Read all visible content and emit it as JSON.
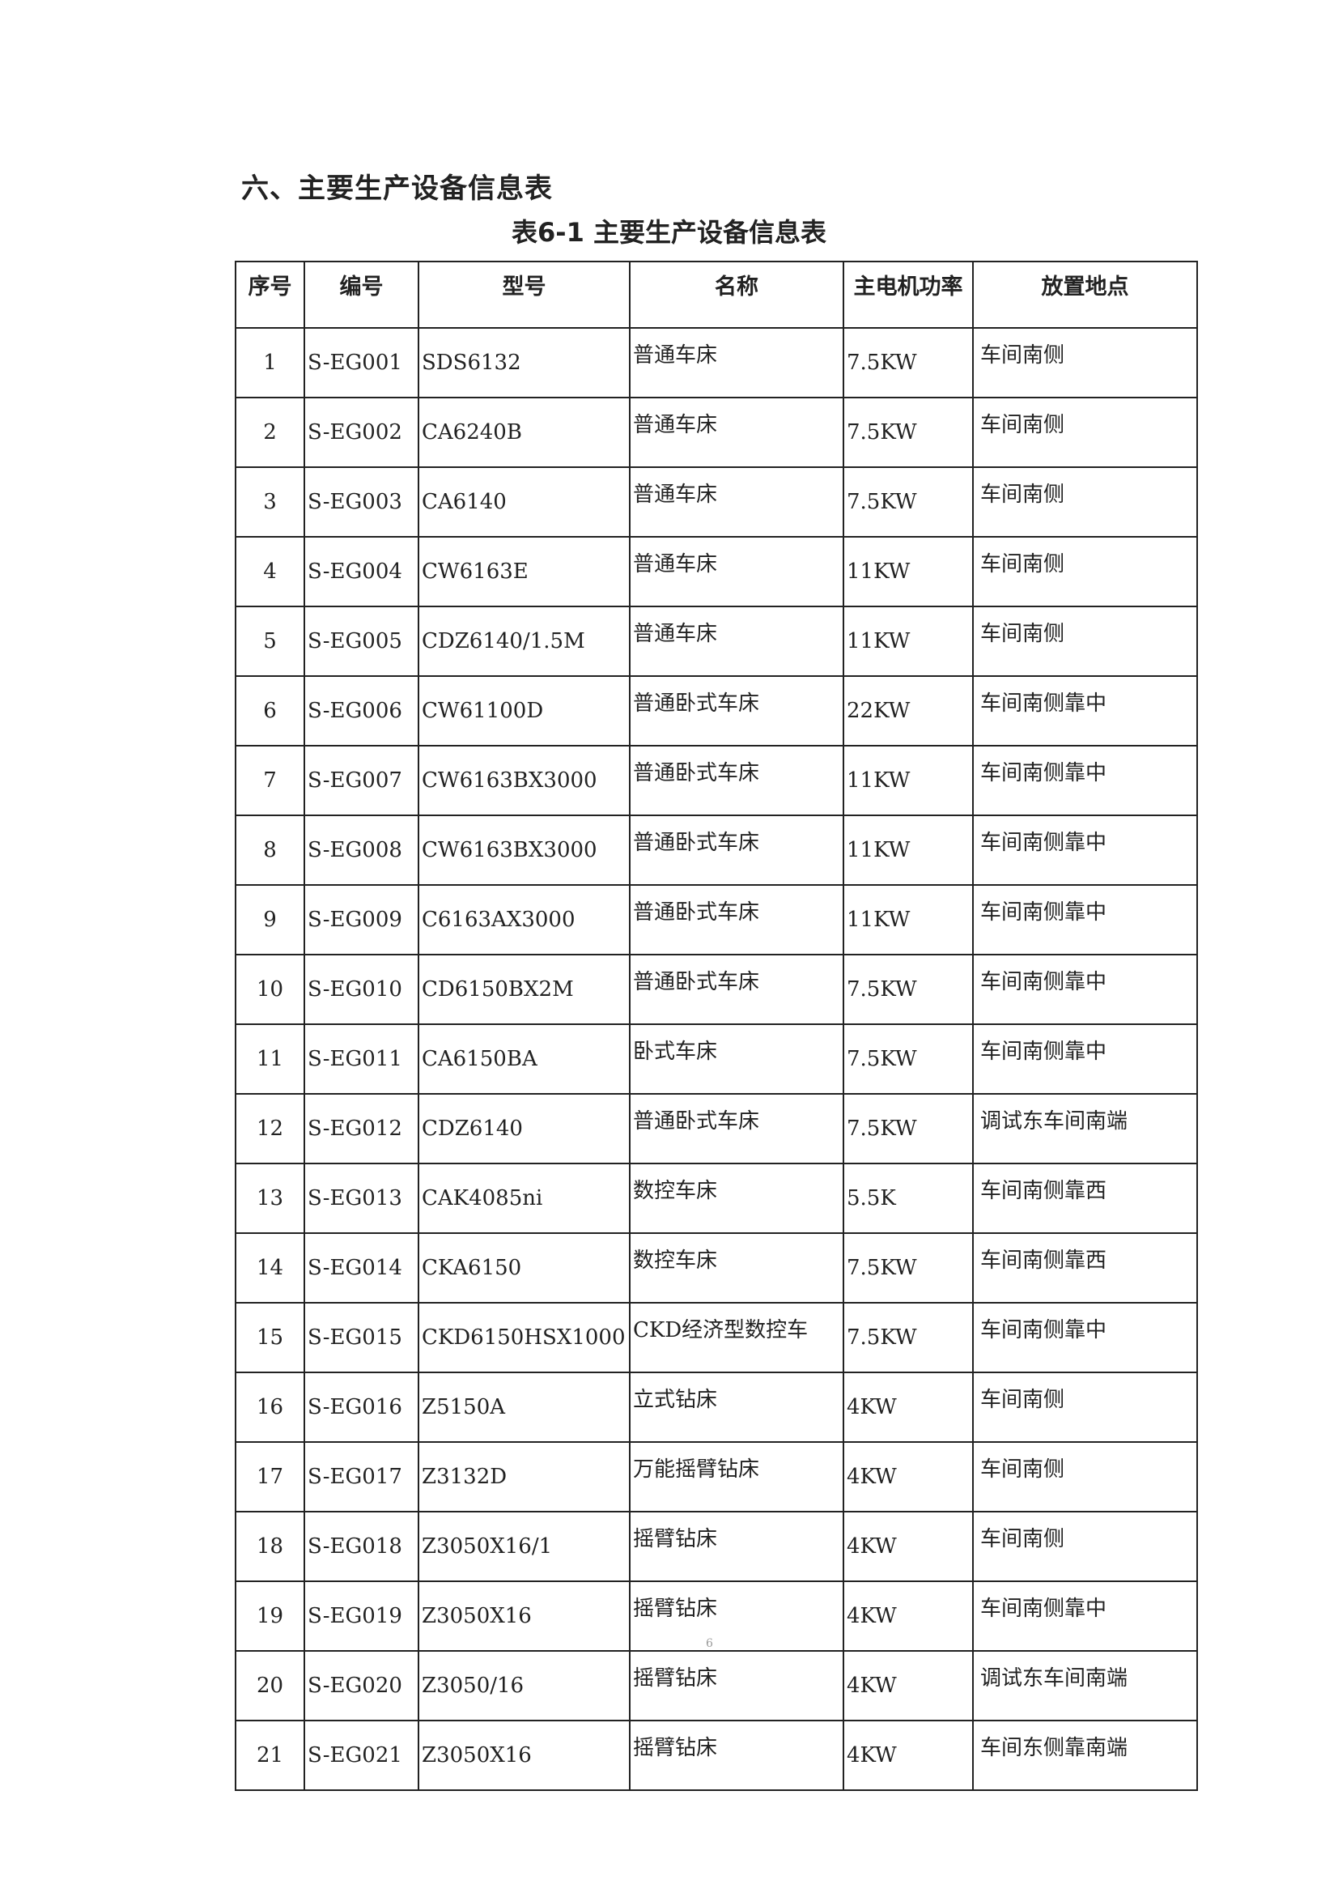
{
  "section_title": "六、主要生产设备信息表",
  "table_caption": "表6-1 主要生产设备信息表",
  "columns": [
    "序号",
    "编号",
    "型号",
    "名称",
    "主电机功率",
    "放置地点"
  ],
  "rows": [
    [
      "1",
      "S-EG001",
      "SDS6132",
      "普通车床",
      "7.5KW",
      "车间南侧"
    ],
    [
      "2",
      "S-EG002",
      "CA6240B",
      "普通车床",
      "7.5KW",
      "车间南侧"
    ],
    [
      "3",
      "S-EG003",
      "CA6140",
      "普通车床",
      "7.5KW",
      "车间南侧"
    ],
    [
      "4",
      "S-EG004",
      "CW6163E",
      "普通车床",
      "11KW",
      "车间南侧"
    ],
    [
      "5",
      "S-EG005",
      "CDZ6140/1.5M",
      "普通车床",
      "11KW",
      "车间南侧"
    ],
    [
      "6",
      "S-EG006",
      "CW61100D",
      "普通卧式车床",
      "22KW",
      "车间南侧靠中"
    ],
    [
      "7",
      "S-EG007",
      "CW6163BX3000",
      "普通卧式车床",
      "11KW",
      "车间南侧靠中"
    ],
    [
      "8",
      "S-EG008",
      "CW6163BX3000",
      "普通卧式车床",
      "11KW",
      "车间南侧靠中"
    ],
    [
      "9",
      "S-EG009",
      "C6163AX3000",
      "普通卧式车床",
      "11KW",
      "车间南侧靠中"
    ],
    [
      "10",
      "S-EG010",
      "CD6150BX2M",
      "普通卧式车床",
      "7.5KW",
      "车间南侧靠中"
    ],
    [
      "11",
      "S-EG011",
      "CA6150BA",
      "卧式车床",
      "7.5KW",
      "车间南侧靠中"
    ],
    [
      "12",
      "S-EG012",
      "CDZ6140",
      "普通卧式车床",
      "7.5KW",
      "调试东车间南端"
    ],
    [
      "13",
      "S-EG013",
      "CAK4085ni",
      "数控车床",
      "5.5K",
      "车间南侧靠西"
    ],
    [
      "14",
      "S-EG014",
      "CKA6150",
      "数控车床",
      "7.5KW",
      "车间南侧靠西"
    ],
    [
      "15",
      "S-EG015",
      "CKD6150HSX1000",
      "CKD经济型数控车",
      "7.5KW",
      "车间南侧靠中"
    ],
    [
      "16",
      "S-EG016",
      "Z5150A",
      "立式钻床",
      "4KW",
      "车间南侧"
    ],
    [
      "17",
      "S-EG017",
      "Z3132D",
      "万能摇臂钻床",
      "4KW",
      "车间南侧"
    ],
    [
      "18",
      "S-EG018",
      "Z3050X16/1",
      "摇臂钻床",
      "4KW",
      "车间南侧"
    ],
    [
      "19",
      "S-EG019",
      "Z3050X16",
      "摇臂钻床",
      "4KW",
      "车间南侧靠中"
    ],
    [
      "20",
      "S-EG020",
      "Z3050/16",
      "摇臂钻床",
      "4KW",
      "调试东车间南端"
    ],
    [
      "21",
      "S-EG021",
      "Z3050X16",
      "摇臂钻床",
      "4KW",
      "车间东侧靠南端"
    ]
  ],
  "page_number": "6"
}
